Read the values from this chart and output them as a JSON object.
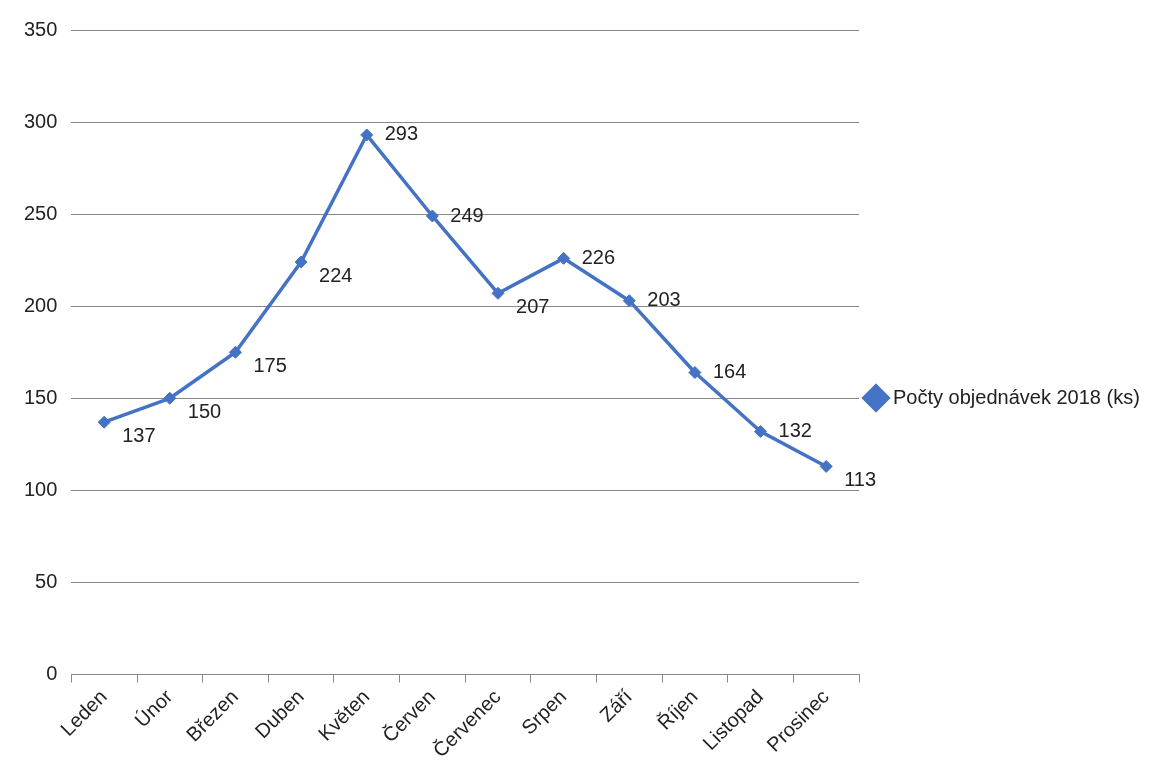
{
  "chart_data": {
    "type": "line",
    "categories": [
      "Leden",
      "Únor",
      "Březen",
      "Duben",
      "Květen",
      "Červen",
      "Červenec",
      "Srpen",
      "Září",
      "Říjen",
      "Listopad",
      "Prosinec"
    ],
    "series": [
      {
        "name": "Počty objednávek 2018 (ks)",
        "color": "#4472c4",
        "values": [
          137,
          150,
          175,
          224,
          293,
          249,
          207,
          226,
          203,
          164,
          132,
          113
        ]
      }
    ],
    "ylim": [
      0,
      350
    ],
    "yticks": [
      0,
      50,
      100,
      150,
      200,
      250,
      300,
      350
    ],
    "grid": "y",
    "legend": "right",
    "marker": "diamond",
    "line_style": "solid",
    "data_labels": true
  }
}
